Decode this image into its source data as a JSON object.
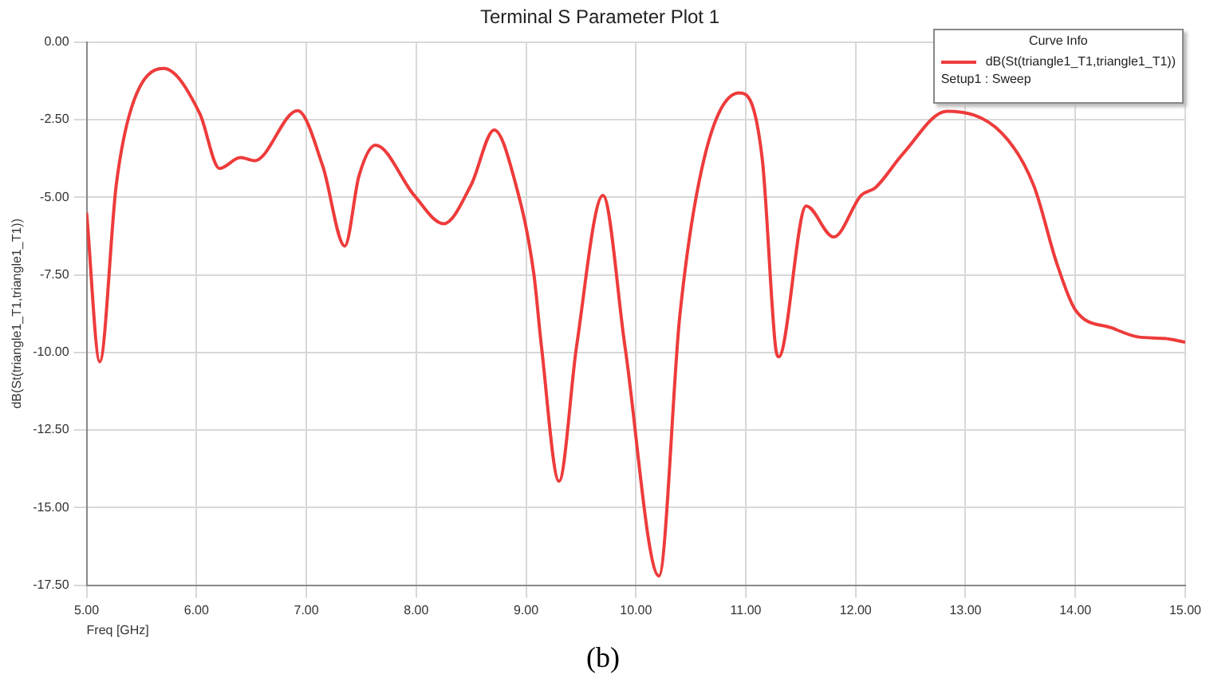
{
  "chart_data": {
    "type": "line",
    "title": "Terminal S Parameter Plot 1",
    "xlabel": "Freq [GHz]",
    "ylabel": "dB(St(triangle1_T1,triangle1_T1))",
    "legend_title": "Curve Info",
    "legend": "top right",
    "grid": true,
    "marker": "none",
    "line_style": "solid",
    "xlim": [
      5,
      15
    ],
    "ylim": [
      -17.5,
      0
    ],
    "xticks": [
      {
        "value": 5,
        "label": "5.00"
      },
      {
        "value": 6,
        "label": "6.00"
      },
      {
        "value": 7,
        "label": "7.00"
      },
      {
        "value": 8,
        "label": "8.00"
      },
      {
        "value": 9,
        "label": "9.00"
      },
      {
        "value": 10,
        "label": "10.00"
      },
      {
        "value": 11,
        "label": "11.00"
      },
      {
        "value": 12,
        "label": "12.00"
      },
      {
        "value": 13,
        "label": "13.00"
      },
      {
        "value": 14,
        "label": "14.00"
      },
      {
        "value": 15,
        "label": "15.00"
      }
    ],
    "yticks": [
      {
        "value": -17.5,
        "label": "-17.50"
      },
      {
        "value": -15,
        "label": "-15.00"
      },
      {
        "value": -12.5,
        "label": "-12.50"
      },
      {
        "value": -10,
        "label": "-10.00"
      },
      {
        "value": -7.5,
        "label": "-7.50"
      },
      {
        "value": -5,
        "label": "-5.00"
      },
      {
        "value": -2.5,
        "label": "-2.50"
      },
      {
        "value": 0,
        "label": "0.00"
      }
    ],
    "series": [
      {
        "name": "dB(St(triangle1_T1,triangle1_T1))",
        "color": "#ee3b3b",
        "x": [
          5.0,
          5.12,
          5.27,
          5.41,
          5.7,
          6.03,
          6.21,
          6.4,
          6.53,
          6.92,
          7.15,
          7.35,
          7.48,
          7.63,
          7.98,
          8.25,
          8.5,
          8.71,
          8.9,
          9.07,
          9.14,
          9.3,
          9.46,
          9.7,
          9.9,
          10.21,
          10.4,
          10.62,
          10.94,
          11.15,
          11.27,
          11.3,
          11.55,
          11.8,
          12.05,
          12.18,
          12.43,
          12.83,
          13.33,
          13.62,
          13.83,
          14.0,
          14.34,
          14.57,
          14.81,
          15.0
        ],
        "values": [
          -5.5,
          -10.3,
          -4.6,
          -2.1,
          -0.85,
          -2.3,
          -4.07,
          -3.72,
          -3.82,
          -2.21,
          -4.0,
          -6.57,
          -4.3,
          -3.32,
          -4.93,
          -5.85,
          -4.6,
          -2.83,
          -4.5,
          -7.45,
          -9.8,
          -14.15,
          -9.8,
          -4.94,
          -9.8,
          -17.2,
          -8.8,
          -3.77,
          -1.64,
          -3.77,
          -9.8,
          -10.14,
          -5.28,
          -6.28,
          -4.94,
          -4.69,
          -3.6,
          -2.23,
          -2.93,
          -4.61,
          -7.12,
          -8.63,
          -9.22,
          -9.5,
          -9.55,
          -9.67
        ]
      }
    ],
    "annotations": [
      "Setup1 : Sweep",
      "(b)"
    ]
  }
}
